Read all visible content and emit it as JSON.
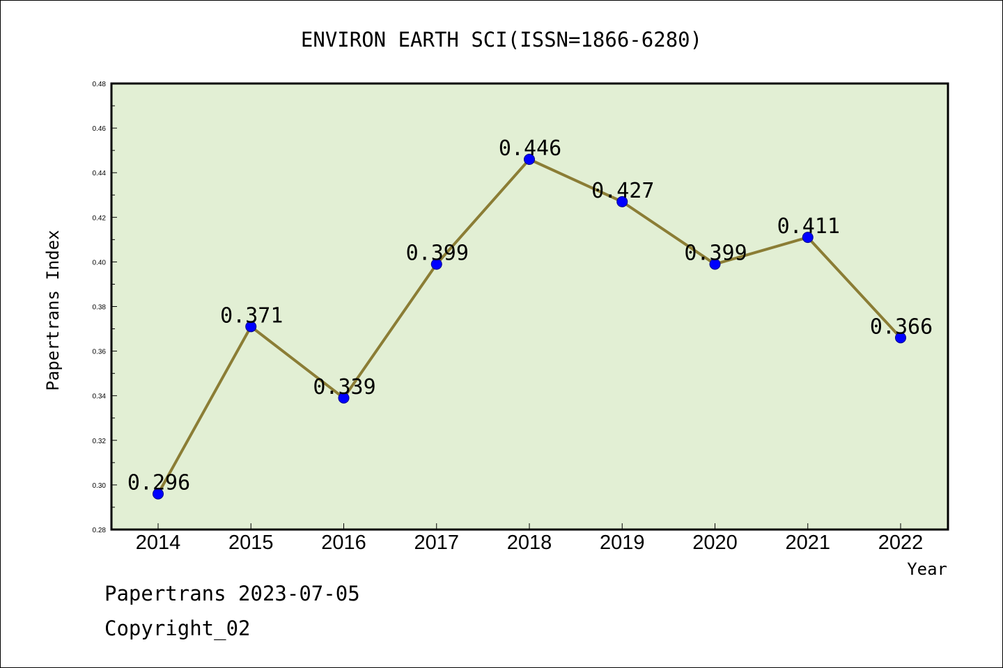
{
  "chart_data": {
    "type": "line",
    "title": "ENVIRON EARTH SCI(ISSN=1866-6280)",
    "xlabel": "Year",
    "ylabel": "Papertrans Index",
    "categories": [
      "2014",
      "2015",
      "2016",
      "2017",
      "2018",
      "2019",
      "2020",
      "2021",
      "2022"
    ],
    "values": [
      0.296,
      0.371,
      0.339,
      0.399,
      0.446,
      0.427,
      0.399,
      0.411,
      0.366
    ],
    "data_labels": [
      "0.296",
      "0.371",
      "0.339",
      "0.399",
      "0.446",
      "0.427",
      "0.399",
      "0.411",
      "0.366"
    ],
    "ylim": [
      0.28,
      0.48
    ],
    "y_ticks": [
      "0.28",
      "0.30",
      "0.32",
      "0.34",
      "0.36",
      "0.38",
      "0.40",
      "0.42",
      "0.44",
      "0.46",
      "0.48"
    ],
    "grid": false,
    "colors": {
      "plot_background": "#e2efd4",
      "line": "#8b7d35",
      "marker": "#0000ff",
      "marker_edge": "#00008b"
    }
  },
  "footer": {
    "line1": "Papertrans 2023-07-05",
    "line2": "Copyright_02"
  }
}
